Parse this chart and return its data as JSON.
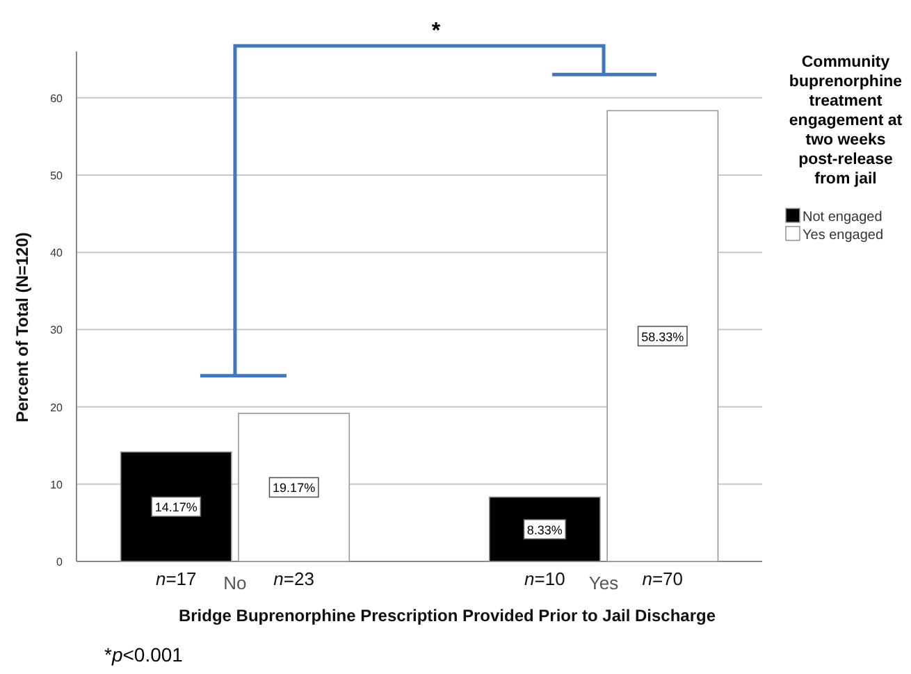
{
  "chart_data": {
    "type": "bar",
    "xlabel": "Bridge Buprenorphine Prescription Provided Prior to Jail Discharge",
    "ylabel": "Percent of Total (N=120)",
    "legend_title": "Community buprenorphine treatment engagement at two weeks post-release from jail",
    "categories": [
      "No",
      "Yes"
    ],
    "series": [
      {
        "name": "Not engaged",
        "color": "#000000",
        "values": [
          14.17,
          8.33
        ],
        "value_labels": [
          "14.17%",
          "8.33%"
        ]
      },
      {
        "name": "Yes engaged",
        "color": "#ffffff",
        "values": [
          19.17,
          58.33
        ],
        "value_labels": [
          "19.17%",
          "58.33%"
        ]
      }
    ],
    "ylim": [
      0,
      66
    ],
    "yticks": [
      0,
      10,
      20,
      30,
      40,
      50,
      60
    ],
    "grid": "y",
    "legend": "right",
    "annotations": [
      "*",
      "n=17",
      "n=23",
      "n=10",
      "n=70",
      "*p<0.001"
    ]
  }
}
